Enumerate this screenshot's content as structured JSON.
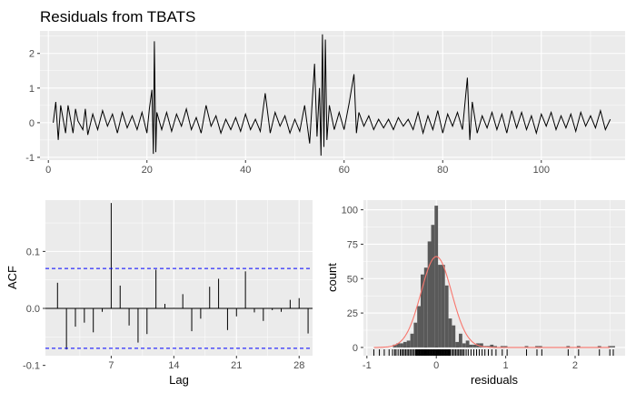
{
  "title": "Residuals from TBATS",
  "colors": {
    "panel": "#ebebeb",
    "grid_major": "#ffffff",
    "series": "#000000",
    "bars": "#595959",
    "density": "#f8766d",
    "ci": "#0000ff"
  },
  "chart_data": [
    {
      "type": "line",
      "title": "Residuals from TBATS",
      "xlabel": "",
      "ylabel": "",
      "xlim": [
        -1.7,
        117
      ],
      "ylim": [
        -1.08,
        2.65
      ],
      "x_ticks": [
        "0",
        "20",
        "40",
        "60",
        "80",
        "100"
      ],
      "y_ticks": [
        "-1",
        "0",
        "1",
        "2"
      ],
      "grid": true,
      "series": [
        {
          "points": [
            [
              1,
              0
            ],
            [
              1.5,
              0.6
            ],
            [
              2,
              -0.5
            ],
            [
              2.5,
              0.5
            ],
            [
              3,
              0.1
            ],
            [
              3.5,
              -0.3
            ],
            [
              4,
              0.5
            ],
            [
              5,
              -0.3
            ],
            [
              5.5,
              0.4
            ],
            [
              6,
              0.05
            ],
            [
              7,
              -0.2
            ],
            [
              7.5,
              0.4
            ],
            [
              8,
              -0.35
            ],
            [
              9,
              0.25
            ],
            [
              10,
              -0.2
            ],
            [
              11,
              0.35
            ],
            [
              12,
              -0.1
            ],
            [
              13,
              0.25
            ],
            [
              14,
              -0.3
            ],
            [
              15,
              0.3
            ],
            [
              16,
              -0.15
            ],
            [
              17,
              0.2
            ],
            [
              18,
              -0.2
            ],
            [
              19,
              0.3
            ],
            [
              20,
              -0.3
            ],
            [
              20.5,
              0.4
            ],
            [
              21,
              0.95
            ],
            [
              21.3,
              -0.9
            ],
            [
              21.5,
              2.35
            ],
            [
              21.8,
              -0.85
            ],
            [
              22,
              0.3
            ],
            [
              23,
              -0.2
            ],
            [
              24,
              0.3
            ],
            [
              25,
              -0.25
            ],
            [
              26,
              0.25
            ],
            [
              27,
              -0.1
            ],
            [
              28,
              0.4
            ],
            [
              29,
              -0.2
            ],
            [
              30,
              0.15
            ],
            [
              31,
              -0.3
            ],
            [
              32,
              0.5
            ],
            [
              33,
              -0.1
            ],
            [
              34,
              0.2
            ],
            [
              35,
              -0.3
            ],
            [
              36,
              0.1
            ],
            [
              37,
              -0.2
            ],
            [
              38,
              0.15
            ],
            [
              39,
              -0.25
            ],
            [
              40,
              0.25
            ],
            [
              41,
              -0.2
            ],
            [
              42,
              0.1
            ],
            [
              43,
              -0.25
            ],
            [
              44,
              0.85
            ],
            [
              45,
              -0.3
            ],
            [
              46,
              0.3
            ],
            [
              47,
              -0.1
            ],
            [
              48,
              0.2
            ],
            [
              49,
              -0.3
            ],
            [
              50,
              0.1
            ],
            [
              51,
              -0.25
            ],
            [
              52,
              0.5
            ],
            [
              53,
              -0.6
            ],
            [
              54,
              1.7
            ],
            [
              54.5,
              -0.4
            ],
            [
              55,
              1.0
            ],
            [
              55.3,
              -0.95
            ],
            [
              55.6,
              2.55
            ],
            [
              55.9,
              -0.7
            ],
            [
              56.2,
              2.4
            ],
            [
              56.5,
              -0.5
            ],
            [
              57,
              0.5
            ],
            [
              58,
              -0.2
            ],
            [
              59,
              0.3
            ],
            [
              60,
              -0.2
            ],
            [
              61,
              0.55
            ],
            [
              62,
              1.4
            ],
            [
              62.5,
              -0.3
            ],
            [
              63,
              0.3
            ],
            [
              64,
              -0.1
            ],
            [
              65,
              0.2
            ],
            [
              66,
              -0.2
            ],
            [
              67,
              0.1
            ],
            [
              68,
              -0.15
            ],
            [
              69,
              0.1
            ],
            [
              70,
              -0.2
            ],
            [
              71,
              0.15
            ],
            [
              72,
              -0.1
            ],
            [
              73,
              0.1
            ],
            [
              74,
              -0.2
            ],
            [
              75,
              0.3
            ],
            [
              76,
              -0.3
            ],
            [
              77,
              0.2
            ],
            [
              78,
              -0.2
            ],
            [
              79,
              0.35
            ],
            [
              80,
              -0.3
            ],
            [
              81,
              0.25
            ],
            [
              82,
              -0.1
            ],
            [
              83,
              0.3
            ],
            [
              84,
              -0.2
            ],
            [
              85,
              1.3
            ],
            [
              85.5,
              -0.5
            ],
            [
              86,
              0.6
            ],
            [
              87,
              -0.3
            ],
            [
              88,
              0.2
            ],
            [
              89,
              -0.15
            ],
            [
              90,
              0.3
            ],
            [
              91,
              -0.2
            ],
            [
              92,
              0.25
            ],
            [
              93,
              -0.3
            ],
            [
              94,
              0.35
            ],
            [
              95,
              -0.15
            ],
            [
              96,
              0.3
            ],
            [
              97,
              -0.2
            ],
            [
              98,
              0.2
            ],
            [
              99,
              -0.3
            ],
            [
              100,
              0.25
            ],
            [
              101,
              -0.1
            ],
            [
              102,
              0.3
            ],
            [
              103,
              -0.2
            ],
            [
              104,
              0.2
            ],
            [
              105,
              -0.15
            ],
            [
              106,
              0.25
            ],
            [
              107,
              -0.25
            ],
            [
              108,
              0.3
            ],
            [
              109,
              -0.1
            ],
            [
              110,
              0.2
            ],
            [
              111,
              -0.15
            ],
            [
              112,
              0.35
            ],
            [
              113,
              -0.2
            ],
            [
              114,
              0.1
            ]
          ]
        }
      ]
    },
    {
      "type": "bar",
      "title": "",
      "xlabel": "Lag",
      "ylabel": "ACF",
      "xlim": [
        -0.35,
        29.5
      ],
      "ylim": [
        -0.083,
        0.19
      ],
      "x_ticks": [
        "7",
        "14",
        "21",
        "28"
      ],
      "y_ticks": [
        "-0.1",
        "0.0",
        "0.1"
      ],
      "grid": true,
      "lags": [
        1,
        2,
        3,
        4,
        5,
        6,
        7,
        8,
        9,
        10,
        11,
        12,
        13,
        14,
        15,
        16,
        17,
        18,
        19,
        20,
        21,
        22,
        23,
        24,
        25,
        26,
        27,
        28,
        29
      ],
      "values": [
        0.045,
        -0.072,
        -0.032,
        -0.025,
        -0.042,
        -0.006,
        0.185,
        0.04,
        -0.03,
        -0.06,
        -0.045,
        0.068,
        0.008,
        0.001,
        0.025,
        -0.04,
        -0.018,
        0.038,
        0.052,
        -0.038,
        -0.014,
        0.065,
        -0.007,
        -0.022,
        -0.003,
        -0.006,
        0.015,
        0.018,
        -0.044
      ],
      "ci": [
        0.07,
        -0.07
      ]
    },
    {
      "type": "bar",
      "title": "",
      "xlabel": "residuals",
      "ylabel": "count",
      "xlim": [
        -1.05,
        2.72
      ],
      "ylim": [
        -6,
        107
      ],
      "x_ticks": [
        "-1",
        "0",
        "1",
        "2"
      ],
      "y_ticks": [
        "0",
        "25",
        "50",
        "75",
        "100"
      ],
      "grid": true,
      "bin_width": 0.05,
      "bins": [
        [
          -0.6,
          2
        ],
        [
          -0.55,
          3
        ],
        [
          -0.5,
          3
        ],
        [
          -0.45,
          4
        ],
        [
          -0.4,
          5
        ],
        [
          -0.35,
          10
        ],
        [
          -0.3,
          18
        ],
        [
          -0.25,
          30
        ],
        [
          -0.2,
          53
        ],
        [
          -0.15,
          58
        ],
        [
          -0.1,
          77
        ],
        [
          -0.05,
          89
        ],
        [
          0.0,
          103
        ],
        [
          0.05,
          60
        ],
        [
          0.1,
          60
        ],
        [
          0.15,
          45
        ],
        [
          0.2,
          21
        ],
        [
          0.25,
          16
        ],
        [
          0.3,
          4
        ],
        [
          0.35,
          10
        ],
        [
          0.4,
          3
        ],
        [
          0.45,
          5
        ],
        [
          0.5,
          2
        ],
        [
          0.55,
          2
        ],
        [
          0.6,
          3
        ],
        [
          0.65,
          3
        ],
        [
          0.7,
          1
        ],
        [
          0.75,
          1
        ],
        [
          0.8,
          2
        ],
        [
          0.85,
          1
        ],
        [
          0.9,
          0
        ],
        [
          0.95,
          1
        ],
        [
          1.0,
          1
        ],
        [
          1.3,
          1
        ],
        [
          1.45,
          1
        ],
        [
          1.5,
          1
        ],
        [
          1.9,
          1
        ],
        [
          2.05,
          1
        ],
        [
          2.35,
          1
        ],
        [
          2.5,
          1
        ],
        [
          2.55,
          1
        ]
      ],
      "density": {
        "mean": 0.0,
        "sd": 0.22,
        "scale": 5.85
      },
      "rug": [
        -0.9,
        -0.82,
        -0.75,
        -0.68,
        -0.63,
        -0.6,
        -0.58,
        -0.55,
        -0.52,
        -0.5,
        -0.48,
        -0.46,
        -0.44,
        -0.42,
        -0.4,
        -0.38,
        -0.36,
        -0.34,
        -0.32,
        -0.3,
        -0.29,
        -0.28,
        -0.27,
        -0.26,
        -0.25,
        -0.24,
        -0.23,
        -0.22,
        -0.21,
        -0.2,
        -0.19,
        -0.18,
        -0.17,
        -0.16,
        -0.15,
        -0.14,
        -0.13,
        -0.12,
        -0.11,
        -0.1,
        -0.09,
        -0.08,
        -0.07,
        -0.06,
        -0.05,
        -0.04,
        -0.03,
        -0.02,
        -0.01,
        0.0,
        0.01,
        0.02,
        0.03,
        0.04,
        0.05,
        0.06,
        0.07,
        0.08,
        0.09,
        0.1,
        0.11,
        0.12,
        0.13,
        0.14,
        0.15,
        0.16,
        0.17,
        0.18,
        0.19,
        0.2,
        0.22,
        0.24,
        0.26,
        0.28,
        0.3,
        0.32,
        0.34,
        0.36,
        0.38,
        0.4,
        0.43,
        0.46,
        0.5,
        0.54,
        0.58,
        0.62,
        0.66,
        0.7,
        0.75,
        0.8,
        0.86,
        0.95,
        1.02,
        1.3,
        1.45,
        1.52,
        1.9,
        2.05,
        2.35,
        2.5,
        2.55
      ]
    }
  ]
}
